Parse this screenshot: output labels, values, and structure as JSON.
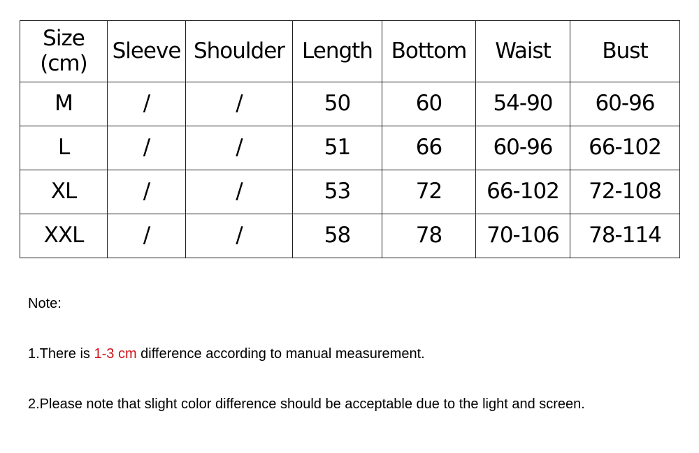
{
  "table": {
    "headers": [
      "Size\n(cm)",
      "Sleeve",
      "Shoulder",
      "Length",
      "Bottom",
      "Waist",
      "Bust"
    ],
    "rows": [
      [
        "M",
        "/",
        "/",
        "50",
        "60",
        "54-90",
        "60-96"
      ],
      [
        "L",
        "/",
        "/",
        "51",
        "66",
        "60-96",
        "66-102"
      ],
      [
        "XL",
        "/",
        "/",
        "53",
        "72",
        "66-102",
        "72-108"
      ],
      [
        "XXL",
        "/",
        "/",
        "58",
        "78",
        "70-106",
        "78-114"
      ]
    ]
  },
  "notes": {
    "title": "Note:",
    "line1_prefix": "1.There is ",
    "line1_highlight": "1-3 cm",
    "line1_suffix": " difference according to manual measurement.",
    "line2": "2.Please note that slight color difference should be acceptable due to the light and screen.",
    "highlight_color": "#d0121b"
  }
}
